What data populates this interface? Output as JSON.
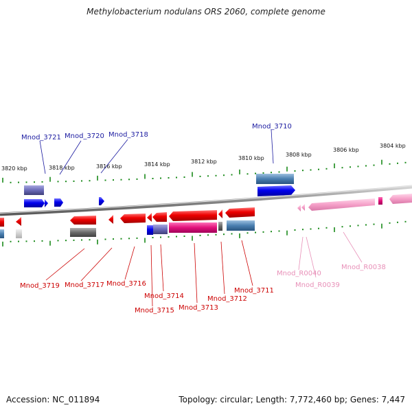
{
  "title": "Methylobacterium nodulans ORS 2060, complete genome",
  "footer": {
    "accession": "Accession: NC_011894",
    "summary": "Topology: circular; Length: 7,772,460 bp; Genes: 7,447"
  },
  "colors": {
    "forward_cds": "#0000ee",
    "forward_gene_bar": "#5a5aa8",
    "reverse_cds": "#ee0000",
    "reverse_gene_bar": "#e0107a",
    "rna": "#f5a0c8",
    "label_blue": "#1a1aa0",
    "label_red": "#cc0000",
    "label_pink": "#e890b8",
    "tick_green": "#1a8a1a",
    "backbone": "#888888"
  },
  "scale": {
    "labels": [
      "3820 kbp",
      "3818 kbp",
      "3816 kbp",
      "3814 kbp",
      "3812 kbp",
      "3810 kbp",
      "3808 kbp",
      "3806 kbp",
      "3804 kbp"
    ]
  },
  "labels": {
    "forward": [
      "Mnod_3721",
      "Mnod_3720",
      "Mnod_3718",
      "Mnod_3710"
    ],
    "reverse": [
      "Mnod_3719",
      "Mnod_3717",
      "Mnod_3716",
      "Mnod_3714",
      "Mnod_3715",
      "Mnod_3713",
      "Mnod_3712",
      "Mnod_3711"
    ],
    "rna": [
      "Mnod_R0040",
      "Mnod_R0039",
      "Mnod_R0038"
    ]
  }
}
